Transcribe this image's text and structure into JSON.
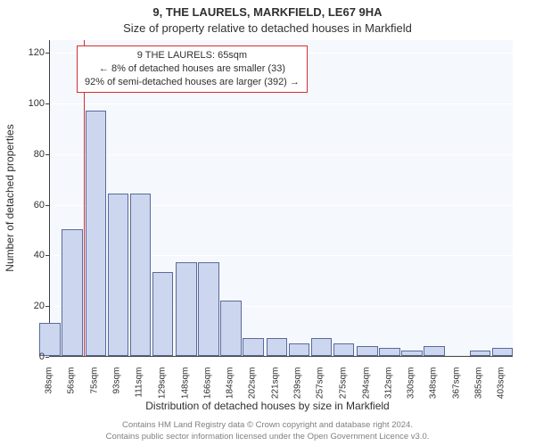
{
  "header": {
    "address": "9, THE LAURELS, MARKFIELD, LE67 9HA",
    "subtitle": "Size of property relative to detached houses in Markfield"
  },
  "axes": {
    "ylabel": "Number of detached properties",
    "xlabel": "Distribution of detached houses by size in Markfield",
    "xlim_min": 38,
    "xlim_max": 412,
    "ylim_min": 0,
    "ylim_max": 125,
    "yticks": [
      0,
      20,
      40,
      60,
      80,
      100,
      120
    ],
    "marker_x": 65
  },
  "style": {
    "plot_bg": "#f5f8fd",
    "grid_color": "#ffffff",
    "bar_fill": "#ccd7ef",
    "bar_edge": "#5b6a9a",
    "marker_color": "#d43030",
    "text_color": "#303030",
    "footer_color": "#808080",
    "title_fontsize": 13,
    "label_fontsize": 12,
    "tick_fontsize": 11,
    "xtick_fontsize": 10,
    "bar_width_ratio": 0.95
  },
  "bars": [
    {
      "x": 38,
      "y": 13
    },
    {
      "x": 56,
      "y": 50
    },
    {
      "x": 75,
      "y": 97
    },
    {
      "x": 93,
      "y": 64
    },
    {
      "x": 111,
      "y": 64
    },
    {
      "x": 129,
      "y": 33
    },
    {
      "x": 148,
      "y": 37
    },
    {
      "x": 166,
      "y": 37
    },
    {
      "x": 184,
      "y": 22
    },
    {
      "x": 202,
      "y": 7
    },
    {
      "x": 221,
      "y": 7
    },
    {
      "x": 239,
      "y": 5
    },
    {
      "x": 257,
      "y": 7
    },
    {
      "x": 275,
      "y": 5
    },
    {
      "x": 294,
      "y": 4
    },
    {
      "x": 312,
      "y": 3
    },
    {
      "x": 330,
      "y": 2
    },
    {
      "x": 348,
      "y": 4
    },
    {
      "x": 367,
      "y": 0
    },
    {
      "x": 385,
      "y": 2
    },
    {
      "x": 403,
      "y": 3
    }
  ],
  "xtick_labels": [
    "38sqm",
    "56sqm",
    "75sqm",
    "93sqm",
    "111sqm",
    "129sqm",
    "148sqm",
    "166sqm",
    "184sqm",
    "202sqm",
    "221sqm",
    "239sqm",
    "257sqm",
    "275sqm",
    "294sqm",
    "312sqm",
    "330sqm",
    "348sqm",
    "367sqm",
    "385sqm",
    "403sqm"
  ],
  "annotation": {
    "line1": "9 THE LAURELS: 65sqm",
    "line2": "← 8% of detached houses are smaller (33)",
    "line3": "92% of semi-detached houses are larger (392) →"
  },
  "footer": {
    "line1": "Contains HM Land Registry data © Crown copyright and database right 2024.",
    "line2": "Contains public sector information licensed under the Open Government Licence v3.0."
  }
}
